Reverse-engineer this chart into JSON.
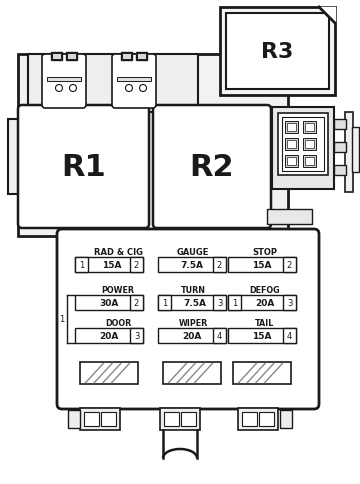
{
  "bg_color": "#ffffff",
  "lc": "#1a1a1a",
  "relay_labels": [
    "R1",
    "R2",
    "R3"
  ],
  "col_headers": [
    "RAD & CIG",
    "GAUGE",
    "STOP"
  ],
  "row1_fuses": [
    {
      "label": "15A",
      "pin_l": "1",
      "pin_r": "2"
    },
    {
      "label": "7.5A",
      "pin_l": "",
      "pin_r": "2"
    },
    {
      "label": "15A",
      "pin_l": "",
      "pin_r": "2"
    }
  ],
  "col1_groups": [
    {
      "header": "POWER",
      "label": "30A",
      "pin_l": "",
      "pin_r": "2"
    },
    {
      "header": "DOOR",
      "label": "20A",
      "pin_l": "",
      "pin_r": "3"
    }
  ],
  "col2_groups": [
    {
      "header": "TURN",
      "label": "7.5A",
      "pin_l": "1",
      "pin_r": "3"
    },
    {
      "header": "WIPER",
      "label": "20A",
      "pin_l": "",
      "pin_r": "4"
    }
  ],
  "col3_groups": [
    {
      "header": "DEFOG",
      "label": "20A",
      "pin_l": "1",
      "pin_r": "3"
    },
    {
      "header": "TAIL",
      "label": "15A",
      "pin_l": "",
      "pin_r": "4"
    }
  ]
}
